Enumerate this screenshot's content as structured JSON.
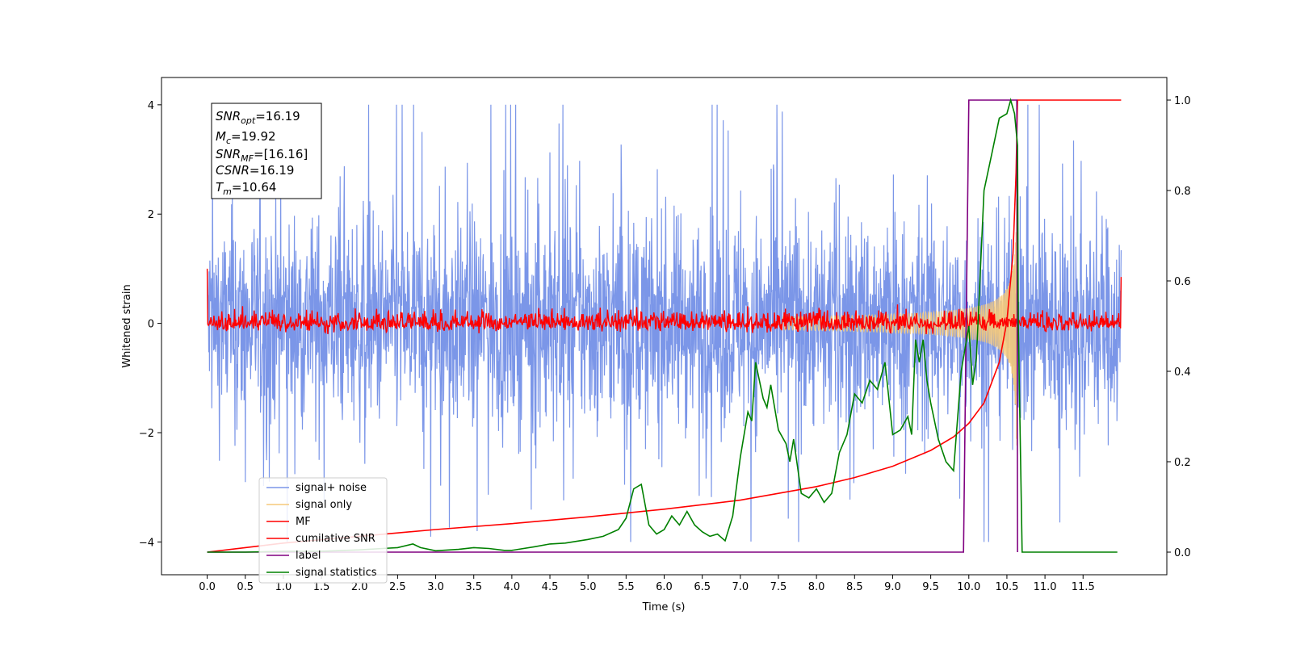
{
  "chart_data": {
    "type": "line",
    "xlabel": "Time (s)",
    "ylabel": "Whitened strain",
    "xlim": [
      -0.6,
      12.6
    ],
    "ylim": [
      -4.6,
      4.5
    ],
    "y2lim": [
      -0.05,
      1.05
    ],
    "x_ticks": [
      "0.0",
      "0.5",
      "1.0",
      "1.5",
      "2.0",
      "2.5",
      "3.0",
      "3.5",
      "4.0",
      "4.5",
      "5.0",
      "5.5",
      "6.0",
      "6.5",
      "7.0",
      "7.5",
      "8.0",
      "8.5",
      "9.0",
      "9.5",
      "10.0",
      "10.5",
      "11.0",
      "11.5"
    ],
    "y_ticks": [
      "-4",
      "-2",
      "0",
      "2",
      "4"
    ],
    "y2_ticks": [
      "0.0",
      "0.2",
      "0.4",
      "0.6",
      "0.8",
      "1.0"
    ],
    "grid": false,
    "legend_position": "lower-left",
    "annotations": {
      "lines": [
        {
          "sym": "SNR",
          "sub": "opt",
          "value": "=16.19"
        },
        {
          "sym": "M",
          "sub": "c",
          "value": "=19.92"
        },
        {
          "sym": "SNR",
          "sub": "MF",
          "value": "=[16.16]"
        },
        {
          "sym": "CSNR",
          "sub": "",
          "value": "=16.19"
        },
        {
          "sym": "T",
          "sub": "m",
          "value": "=10.64"
        }
      ]
    },
    "series": [
      {
        "name": "signal+ noise",
        "color": "#7b96e8",
        "axis": "left",
        "noise_band": {
          "x_start": 0.0,
          "x_end": 12.0,
          "core_amplitude": 1.4,
          "peak_max": 4.0,
          "peak_min": -4.0
        }
      },
      {
        "name": "signal only",
        "color": "#f5c97a",
        "axis": "left",
        "chirp": {
          "x_start": 7.5,
          "merger_time": 10.64,
          "peak_amplitude": 2.7
        }
      },
      {
        "name": "MF",
        "color": "#ff0000",
        "axis": "left",
        "mean": 0.0,
        "noise_amplitude": 0.12,
        "endpoints": {
          "start_y": 1.0,
          "end_y": 0.85
        }
      },
      {
        "name": "cumilative SNR",
        "color": "#ff0000",
        "axis": "right",
        "x": [
          0.0,
          0.5,
          1.0,
          2.0,
          3.0,
          4.0,
          5.0,
          6.0,
          7.0,
          7.5,
          8.0,
          8.5,
          9.0,
          9.5,
          9.8,
          10.0,
          10.2,
          10.4,
          10.5,
          10.58,
          10.62,
          10.64,
          12.0
        ],
        "y": [
          0.0,
          0.01,
          0.02,
          0.035,
          0.05,
          0.063,
          0.078,
          0.095,
          0.115,
          0.13,
          0.145,
          0.165,
          0.19,
          0.225,
          0.255,
          0.285,
          0.33,
          0.42,
          0.51,
          0.66,
          0.84,
          1.0,
          1.0
        ]
      },
      {
        "name": "label",
        "color": "#800080",
        "axis": "right",
        "x": [
          0.0,
          9.93,
          10.0,
          10.63,
          10.64
        ],
        "y": [
          0.0,
          0.0,
          1.0,
          1.0,
          0.0
        ]
      },
      {
        "name": "signal statistics",
        "color": "#008000",
        "axis": "right",
        "x": [
          0.0,
          0.5,
          1.0,
          1.5,
          2.0,
          2.3,
          2.5,
          2.7,
          2.8,
          3.0,
          3.3,
          3.5,
          3.7,
          3.9,
          4.0,
          4.3,
          4.5,
          4.7,
          5.0,
          5.2,
          5.4,
          5.5,
          5.6,
          5.7,
          5.8,
          5.9,
          6.0,
          6.1,
          6.2,
          6.3,
          6.4,
          6.5,
          6.6,
          6.7,
          6.8,
          6.9,
          7.0,
          7.1,
          7.15,
          7.2,
          7.3,
          7.35,
          7.4,
          7.5,
          7.6,
          7.65,
          7.7,
          7.8,
          7.9,
          8.0,
          8.1,
          8.2,
          8.3,
          8.4,
          8.5,
          8.6,
          8.7,
          8.8,
          8.9,
          9.0,
          9.1,
          9.2,
          9.25,
          9.3,
          9.35,
          9.4,
          9.45,
          9.5,
          9.6,
          9.7,
          9.8,
          9.9,
          10.0,
          10.05,
          10.1,
          10.2,
          10.3,
          10.4,
          10.5,
          10.55,
          10.6,
          10.64,
          10.65,
          10.7,
          11.0,
          11.5,
          11.95
        ],
        "y": [
          0.0,
          0.0,
          0.002,
          0.002,
          0.005,
          0.008,
          0.01,
          0.018,
          0.01,
          0.003,
          0.006,
          0.01,
          0.008,
          0.004,
          0.004,
          0.012,
          0.018,
          0.02,
          0.028,
          0.035,
          0.05,
          0.075,
          0.14,
          0.15,
          0.06,
          0.04,
          0.05,
          0.08,
          0.06,
          0.09,
          0.06,
          0.045,
          0.035,
          0.04,
          0.025,
          0.08,
          0.21,
          0.31,
          0.29,
          0.42,
          0.34,
          0.32,
          0.37,
          0.27,
          0.24,
          0.2,
          0.25,
          0.13,
          0.12,
          0.14,
          0.11,
          0.13,
          0.22,
          0.26,
          0.35,
          0.33,
          0.38,
          0.36,
          0.42,
          0.26,
          0.27,
          0.3,
          0.26,
          0.47,
          0.42,
          0.47,
          0.38,
          0.33,
          0.25,
          0.2,
          0.18,
          0.4,
          0.5,
          0.37,
          0.43,
          0.8,
          0.88,
          0.96,
          0.97,
          1.0,
          0.97,
          0.9,
          0.5,
          0.0,
          0.0,
          0.0,
          0.0
        ]
      }
    ]
  }
}
